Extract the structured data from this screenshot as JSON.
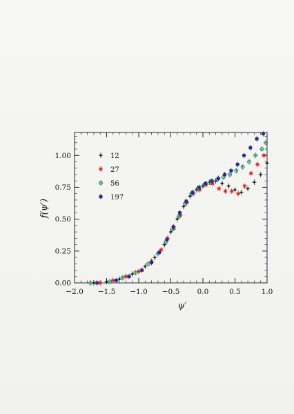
{
  "chart_data": {
    "type": "scatter",
    "xlabel": "ψ′",
    "ylabel": "f(ψ′)",
    "xlim": [
      -2.0,
      1.0
    ],
    "ylim": [
      0.0,
      1.18
    ],
    "xticks": [
      -2.0,
      -1.5,
      -1.0,
      -0.5,
      0.0,
      0.5,
      1.0
    ],
    "xtick_labels": [
      "−2.0",
      "−1.5",
      "−1.0",
      "−0.5",
      "0.0",
      "0.5",
      "1.0"
    ],
    "yticks": [
      0.0,
      0.25,
      0.5,
      0.75,
      1.0
    ],
    "ytick_labels": [
      "0.00",
      "0.25",
      "0.50",
      "0.75",
      "1.00"
    ],
    "legend_position": "top-left",
    "grid": false,
    "series": [
      {
        "name": "12",
        "color": "#222222",
        "marker": "dot",
        "x": [
          -1.7,
          -1.5,
          -1.3,
          -1.1,
          -0.9,
          -0.75,
          -0.6,
          -0.5,
          -0.4,
          -0.3,
          -0.2,
          -0.1,
          0.0,
          0.1,
          0.2,
          0.3,
          0.4,
          0.5,
          0.6,
          0.7,
          0.8,
          0.9,
          1.0
        ],
        "y": [
          0.0,
          0.01,
          0.03,
          0.07,
          0.13,
          0.2,
          0.3,
          0.4,
          0.5,
          0.6,
          0.68,
          0.73,
          0.76,
          0.79,
          0.8,
          0.78,
          0.76,
          0.73,
          0.71,
          0.74,
          0.79,
          0.85,
          0.94
        ]
      },
      {
        "name": "27",
        "color": "#d01a1a",
        "marker": "cross",
        "x": [
          -1.6,
          -1.4,
          -1.2,
          -1.0,
          -0.8,
          -0.65,
          -0.55,
          -0.45,
          -0.35,
          -0.25,
          -0.15,
          -0.05,
          0.05,
          0.15,
          0.25,
          0.35,
          0.45,
          0.55,
          0.65,
          0.75,
          0.85,
          0.95
        ],
        "y": [
          0.0,
          0.02,
          0.05,
          0.09,
          0.17,
          0.26,
          0.35,
          0.43,
          0.53,
          0.63,
          0.7,
          0.73,
          0.77,
          0.78,
          0.74,
          0.72,
          0.72,
          0.7,
          0.76,
          0.86,
          0.93,
          1.0
        ]
      },
      {
        "name": "56",
        "color": "#1e8a5a",
        "marker": "open-circle",
        "x": [
          -1.75,
          -1.45,
          -1.25,
          -1.05,
          -0.85,
          -0.7,
          -0.58,
          -0.48,
          -0.38,
          -0.28,
          -0.18,
          -0.08,
          0.02,
          0.12,
          0.22,
          0.32,
          0.42,
          0.52,
          0.62,
          0.72,
          0.82,
          0.92,
          0.98
        ],
        "y": [
          0.0,
          0.01,
          0.04,
          0.08,
          0.15,
          0.23,
          0.32,
          0.42,
          0.52,
          0.62,
          0.7,
          0.74,
          0.77,
          0.79,
          0.81,
          0.83,
          0.85,
          0.88,
          0.91,
          0.95,
          1.0,
          1.05,
          1.1
        ]
      },
      {
        "name": "197",
        "color": "#2a2a8a",
        "marker": "filled-square",
        "x": [
          -1.65,
          -1.35,
          -1.15,
          -0.95,
          -0.8,
          -0.68,
          -0.56,
          -0.46,
          -0.36,
          -0.26,
          -0.16,
          -0.06,
          0.04,
          0.14,
          0.24,
          0.34,
          0.44,
          0.54,
          0.64,
          0.74,
          0.84,
          0.94
        ],
        "y": [
          0.0,
          0.02,
          0.05,
          0.1,
          0.16,
          0.24,
          0.34,
          0.44,
          0.55,
          0.64,
          0.71,
          0.75,
          0.78,
          0.8,
          0.82,
          0.85,
          0.88,
          0.93,
          1.0,
          1.06,
          1.13,
          1.17
        ]
      }
    ]
  }
}
